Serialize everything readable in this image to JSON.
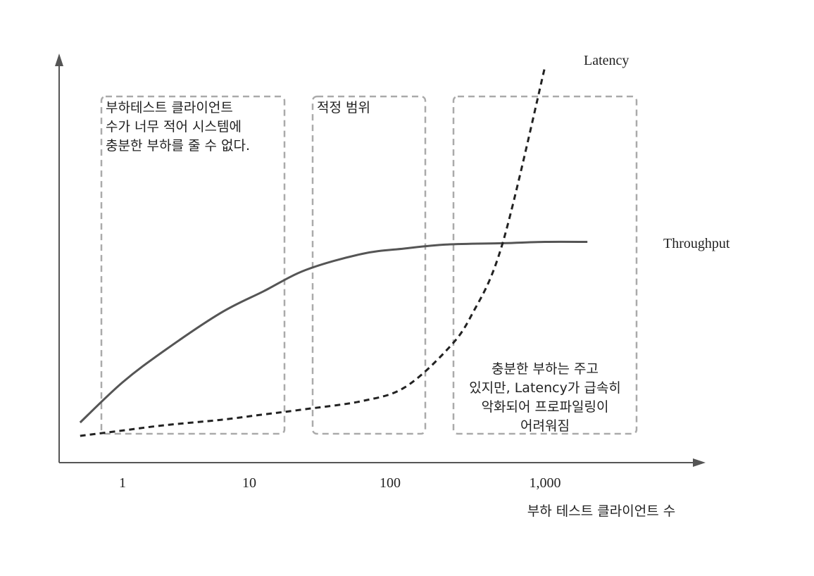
{
  "chart_data": {
    "type": "line",
    "x_scale": "log",
    "xlabel": "부하 테스트 클라이언트 수",
    "ylabel": "",
    "x_ticks": [
      "1",
      "10",
      "100",
      "1,000"
    ],
    "grid": false,
    "series": [
      {
        "name": "Throughput",
        "style": "solid",
        "color": "#555555",
        "x": [
          0.5,
          1,
          2,
          5,
          10,
          20,
          50,
          100,
          200,
          500,
          1000,
          2000
        ],
        "y": [
          0.15,
          0.3,
          0.42,
          0.56,
          0.64,
          0.72,
          0.78,
          0.8,
          0.815,
          0.82,
          0.825,
          0.825
        ]
      },
      {
        "name": "Latency",
        "style": "dashed",
        "color": "#222222",
        "x": [
          0.5,
          1,
          2,
          5,
          10,
          20,
          50,
          100,
          200,
          300,
          500,
          1000
        ],
        "y": [
          0.1,
          0.12,
          0.14,
          0.16,
          0.18,
          0.2,
          0.23,
          0.28,
          0.42,
          0.55,
          0.82,
          1.48
        ]
      }
    ]
  },
  "zones": [
    {
      "id": "low-load",
      "lines": [
        "부하테스트 클라이언트",
        "수가 너무 적어 시스템에",
        "충분한 부하를 줄 수 없다."
      ]
    },
    {
      "id": "optimal",
      "lines": [
        "적정 범위"
      ]
    },
    {
      "id": "overload",
      "lines": [
        "충분한 부하는 주고",
        "있지만, Latency가 급속히",
        "악화되어 프로파일링이",
        "어려워짐"
      ]
    }
  ]
}
